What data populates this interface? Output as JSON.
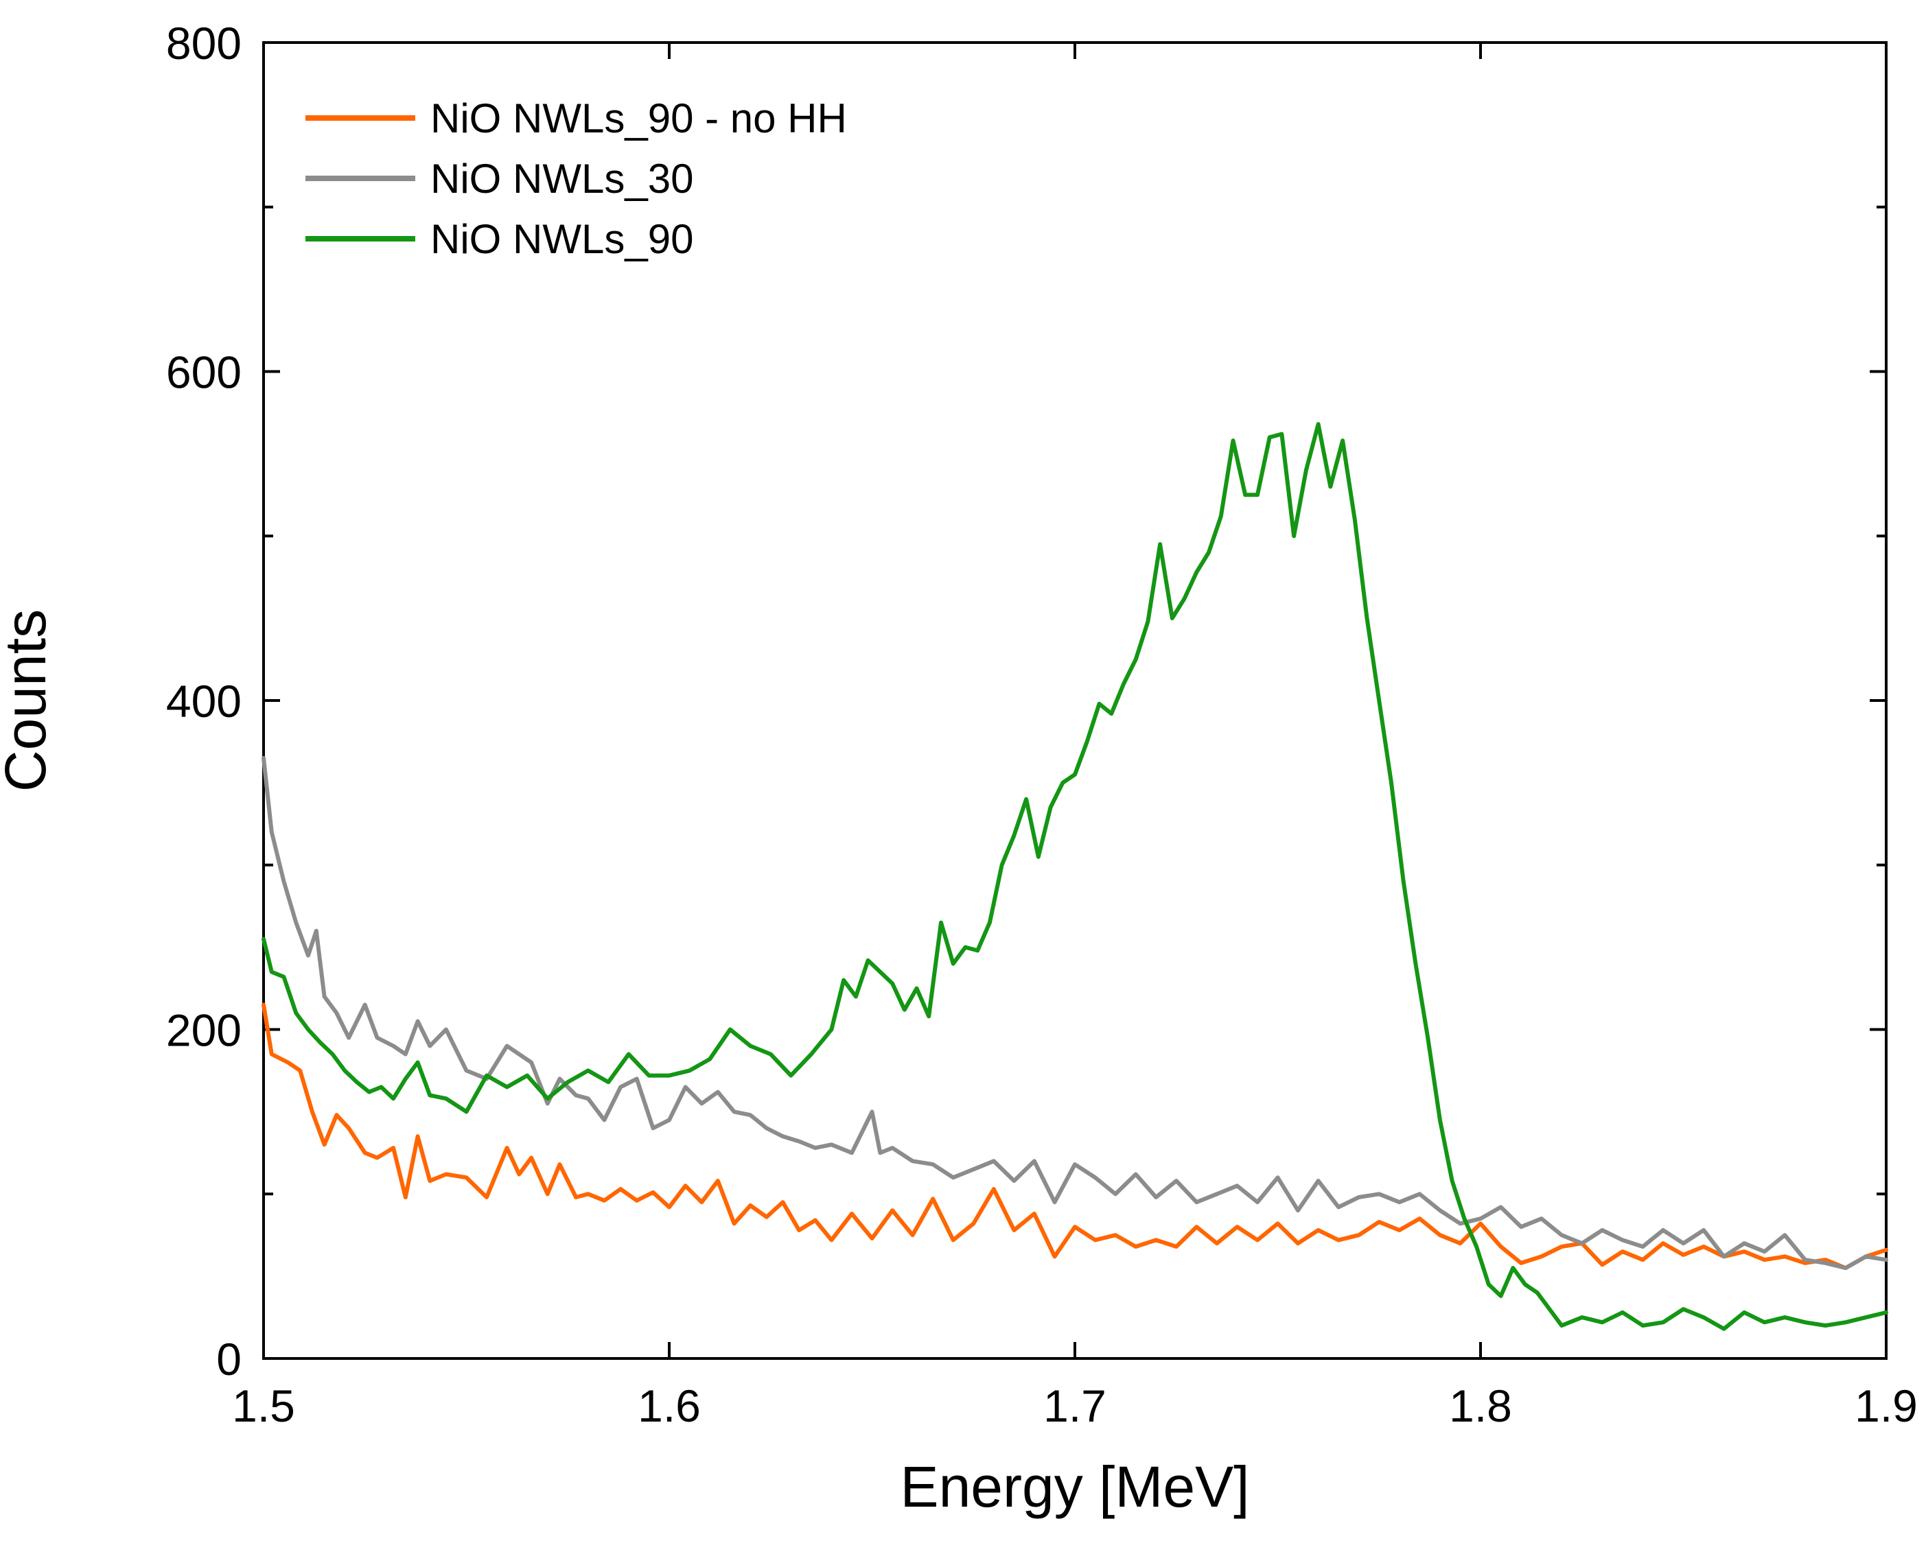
{
  "chart_data": {
    "type": "line",
    "title": "",
    "xlabel": "Energy [MeV]",
    "ylabel": "Counts",
    "xlim": [
      1.5,
      1.9
    ],
    "ylim": [
      0,
      800
    ],
    "xticks": [
      1.5,
      1.6,
      1.7,
      1.8,
      1.9
    ],
    "xtick_labels": [
      "1.5",
      "1.6",
      "1.7",
      "1.8",
      "1.9"
    ],
    "yticks": [
      0,
      200,
      400,
      600,
      800
    ],
    "ytick_labels": [
      "0",
      "200",
      "400",
      "600",
      "800"
    ],
    "minor_yticks": [
      100,
      300,
      500,
      700
    ],
    "grid": false,
    "legend_position": "top-left",
    "series": [
      {
        "name": "NiO NWLs_90 - no HH",
        "color": "#ff6600",
        "x": [
          1.5,
          1.502,
          1.506,
          1.509,
          1.512,
          1.515,
          1.518,
          1.521,
          1.525,
          1.528,
          1.532,
          1.535,
          1.538,
          1.541,
          1.545,
          1.55,
          1.555,
          1.56,
          1.563,
          1.566,
          1.57,
          1.573,
          1.577,
          1.58,
          1.584,
          1.588,
          1.592,
          1.596,
          1.6,
          1.604,
          1.608,
          1.612,
          1.616,
          1.62,
          1.624,
          1.628,
          1.632,
          1.636,
          1.64,
          1.645,
          1.65,
          1.655,
          1.66,
          1.665,
          1.67,
          1.675,
          1.68,
          1.685,
          1.69,
          1.695,
          1.7,
          1.705,
          1.71,
          1.715,
          1.72,
          1.725,
          1.73,
          1.735,
          1.74,
          1.745,
          1.75,
          1.755,
          1.76,
          1.765,
          1.77,
          1.775,
          1.78,
          1.785,
          1.79,
          1.795,
          1.8,
          1.805,
          1.81,
          1.815,
          1.82,
          1.825,
          1.83,
          1.835,
          1.84,
          1.845,
          1.85,
          1.855,
          1.86,
          1.865,
          1.87,
          1.875,
          1.88,
          1.885,
          1.89,
          1.895,
          1.9
        ],
        "y": [
          215,
          185,
          180,
          175,
          150,
          130,
          148,
          140,
          125,
          122,
          128,
          98,
          135,
          108,
          112,
          110,
          98,
          128,
          112,
          122,
          100,
          118,
          98,
          100,
          96,
          103,
          96,
          101,
          92,
          105,
          95,
          108,
          82,
          93,
          86,
          95,
          78,
          84,
          72,
          88,
          73,
          90,
          75,
          97,
          72,
          82,
          103,
          78,
          88,
          62,
          80,
          72,
          75,
          68,
          72,
          68,
          80,
          70,
          80,
          72,
          82,
          70,
          78,
          72,
          75,
          83,
          78,
          85,
          75,
          70,
          82,
          68,
          58,
          62,
          68,
          70,
          57,
          65,
          60,
          70,
          63,
          68,
          62,
          65,
          60,
          62,
          58,
          60,
          55,
          62,
          66
        ]
      },
      {
        "name": "NiO NWLs_30",
        "color": "#8c8c8c",
        "x": [
          1.5,
          1.502,
          1.505,
          1.508,
          1.511,
          1.513,
          1.515,
          1.518,
          1.521,
          1.525,
          1.528,
          1.532,
          1.535,
          1.538,
          1.541,
          1.545,
          1.55,
          1.555,
          1.56,
          1.563,
          1.566,
          1.57,
          1.573,
          1.577,
          1.58,
          1.584,
          1.588,
          1.592,
          1.596,
          1.6,
          1.604,
          1.608,
          1.612,
          1.616,
          1.62,
          1.624,
          1.628,
          1.632,
          1.636,
          1.64,
          1.645,
          1.65,
          1.652,
          1.655,
          1.66,
          1.665,
          1.67,
          1.675,
          1.68,
          1.685,
          1.69,
          1.695,
          1.7,
          1.705,
          1.71,
          1.715,
          1.72,
          1.725,
          1.73,
          1.735,
          1.74,
          1.745,
          1.75,
          1.755,
          1.76,
          1.765,
          1.77,
          1.775,
          1.78,
          1.785,
          1.79,
          1.795,
          1.8,
          1.805,
          1.81,
          1.815,
          1.82,
          1.825,
          1.83,
          1.835,
          1.84,
          1.845,
          1.85,
          1.855,
          1.86,
          1.865,
          1.87,
          1.875,
          1.88,
          1.885,
          1.89,
          1.895,
          1.9
        ],
        "y": [
          365,
          320,
          290,
          265,
          245,
          260,
          220,
          210,
          195,
          215,
          195,
          190,
          185,
          205,
          190,
          200,
          175,
          170,
          190,
          185,
          180,
          155,
          170,
          160,
          158,
          145,
          165,
          170,
          140,
          145,
          165,
          155,
          162,
          150,
          148,
          140,
          135,
          132,
          128,
          130,
          125,
          150,
          125,
          128,
          120,
          118,
          110,
          115,
          120,
          108,
          120,
          95,
          118,
          110,
          100,
          112,
          98,
          108,
          95,
          100,
          105,
          95,
          110,
          90,
          108,
          92,
          98,
          100,
          95,
          100,
          90,
          82,
          85,
          92,
          80,
          85,
          75,
          70,
          78,
          72,
          68,
          78,
          70,
          78,
          62,
          70,
          65,
          75,
          60,
          58,
          55,
          62,
          60
        ]
      },
      {
        "name": "NiO NWLs_90",
        "color": "#149614",
        "x": [
          1.5,
          1.502,
          1.505,
          1.508,
          1.511,
          1.514,
          1.517,
          1.52,
          1.523,
          1.526,
          1.529,
          1.532,
          1.535,
          1.538,
          1.541,
          1.545,
          1.55,
          1.555,
          1.56,
          1.565,
          1.57,
          1.575,
          1.58,
          1.585,
          1.59,
          1.595,
          1.6,
          1.605,
          1.61,
          1.615,
          1.62,
          1.625,
          1.63,
          1.635,
          1.64,
          1.643,
          1.646,
          1.649,
          1.652,
          1.655,
          1.658,
          1.661,
          1.664,
          1.667,
          1.67,
          1.673,
          1.676,
          1.679,
          1.682,
          1.685,
          1.688,
          1.691,
          1.694,
          1.697,
          1.7,
          1.703,
          1.706,
          1.709,
          1.712,
          1.715,
          1.718,
          1.721,
          1.724,
          1.727,
          1.73,
          1.733,
          1.736,
          1.739,
          1.742,
          1.745,
          1.748,
          1.751,
          1.754,
          1.757,
          1.76,
          1.763,
          1.766,
          1.769,
          1.772,
          1.775,
          1.778,
          1.781,
          1.784,
          1.787,
          1.79,
          1.793,
          1.796,
          1.799,
          1.802,
          1.805,
          1.808,
          1.811,
          1.814,
          1.817,
          1.82,
          1.825,
          1.83,
          1.835,
          1.84,
          1.845,
          1.85,
          1.855,
          1.86,
          1.865,
          1.87,
          1.875,
          1.88,
          1.885,
          1.89,
          1.895,
          1.9
        ],
        "y": [
          255,
          235,
          232,
          210,
          200,
          192,
          185,
          175,
          168,
          162,
          165,
          158,
          170,
          180,
          160,
          158,
          150,
          172,
          165,
          172,
          158,
          168,
          175,
          168,
          185,
          172,
          172,
          175,
          182,
          200,
          190,
          185,
          172,
          185,
          200,
          230,
          220,
          242,
          235,
          228,
          212,
          225,
          208,
          265,
          240,
          250,
          248,
          265,
          300,
          318,
          340,
          305,
          335,
          350,
          355,
          375,
          398,
          392,
          410,
          425,
          448,
          495,
          450,
          462,
          478,
          490,
          512,
          558,
          525,
          525,
          560,
          562,
          500,
          540,
          568,
          530,
          558,
          510,
          450,
          400,
          350,
          290,
          240,
          195,
          145,
          108,
          85,
          68,
          45,
          38,
          55,
          45,
          40,
          30,
          20,
          25,
          22,
          28,
          20,
          22,
          30,
          25,
          18,
          28,
          22,
          25,
          22,
          20,
          22,
          25,
          28
        ]
      }
    ]
  }
}
